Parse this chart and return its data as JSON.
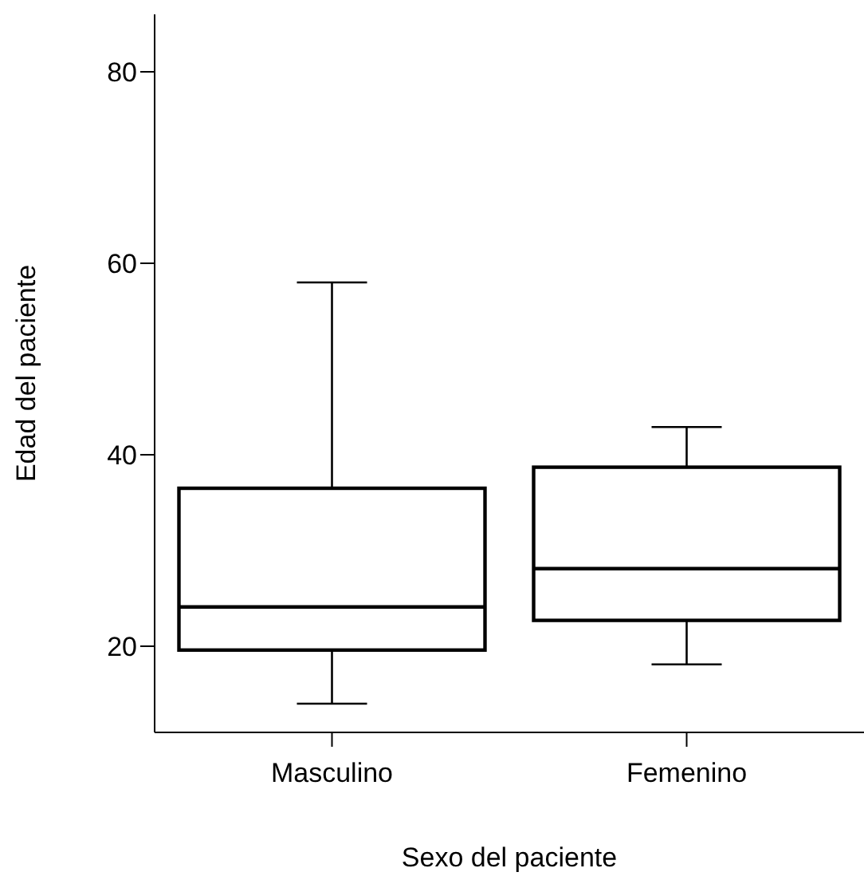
{
  "chart_data": {
    "type": "box",
    "xlabel": "Sexo del paciente",
    "ylabel": "Edad del paciente",
    "categories": [
      "Masculino",
      "Femenino"
    ],
    "boxes": [
      {
        "low": 14.0,
        "q1": 19.6,
        "median": 24.1,
        "q3": 36.5,
        "high": 58.0
      },
      {
        "low": 18.1,
        "q1": 22.7,
        "median": 28.1,
        "q3": 38.7,
        "high": 42.9
      }
    ],
    "ylim": [
      11,
      86
    ],
    "yticks": [
      20,
      40,
      60,
      80
    ],
    "grid": false,
    "legend": false
  }
}
